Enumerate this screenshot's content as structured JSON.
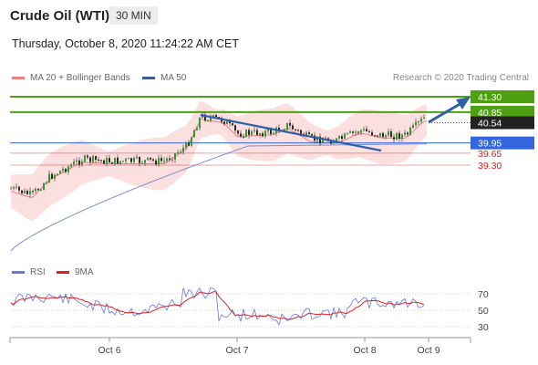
{
  "header": {
    "title": "Crude Oil (WTI)",
    "timeframe": "30 MIN",
    "datetime": "Thursday, October 8, 2020 11:24:22 AM CET"
  },
  "legend": {
    "ma20_label": "MA 20 + Bollinger Bands",
    "ma50_label": "MA 50",
    "credit": "Research © 2020 Trading Central",
    "rsi_label": "RSI",
    "rsi_ma_label": "9MA"
  },
  "colors": {
    "ma20": "#f08080",
    "bands": "#fcdcdc",
    "ma50": "#7b8fd0",
    "green_level": "#4ea012",
    "blue_level": "#3366dd",
    "red_level": "#cc2222",
    "current": "#222222",
    "arrow": "#2f5fa8",
    "rsi": "#6677dd",
    "rsi_ma": "#dd2222"
  },
  "chart_data": {
    "type": "candlestick",
    "title": "Crude Oil (WTI)",
    "timeframe": "30 MIN",
    "x_labels": [
      "Oct 6",
      "Oct 7",
      "Oct 8",
      "Oct 9"
    ],
    "price_axis": [
      39.3,
      41.3
    ],
    "levels": [
      {
        "value": 41.3,
        "label": "41.30",
        "kind": "resistance"
      },
      {
        "value": 40.85,
        "label": "40.85",
        "kind": "resistance"
      },
      {
        "value": 40.54,
        "label": "40.54",
        "kind": "current"
      },
      {
        "value": 39.95,
        "label": "39.95",
        "kind": "pivot"
      },
      {
        "value": 39.65,
        "label": "39.65",
        "kind": "support"
      },
      {
        "value": 39.3,
        "label": "39.30",
        "kind": "support"
      }
    ],
    "rsi_axis_labels": [
      "70",
      "50",
      "30"
    ]
  }
}
